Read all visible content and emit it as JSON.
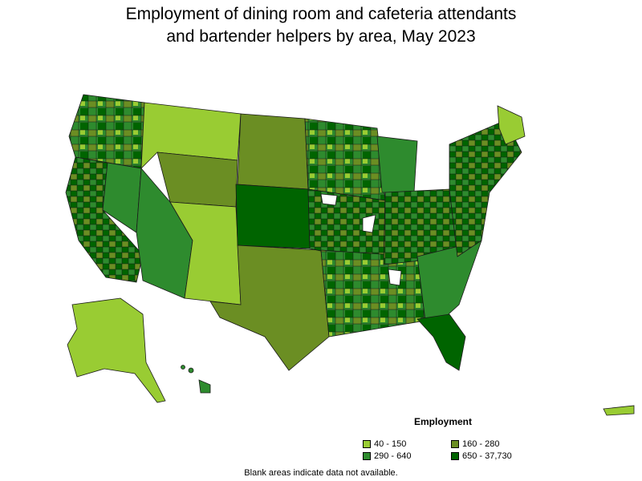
{
  "title_line1": "Employment of dining room and cafeteria attendants",
  "title_line2": "and bartender helpers by area, May 2023",
  "legend": {
    "title": "Employment",
    "items": [
      {
        "label": "40 - 150",
        "color": "#99cc33"
      },
      {
        "label": "160 - 280",
        "color": "#6b8e23"
      },
      {
        "label": "290 - 640",
        "color": "#2e8b2e"
      },
      {
        "label": "650 - 37,730",
        "color": "#006400"
      }
    ]
  },
  "footnote": "Blank areas indicate data not available."
}
